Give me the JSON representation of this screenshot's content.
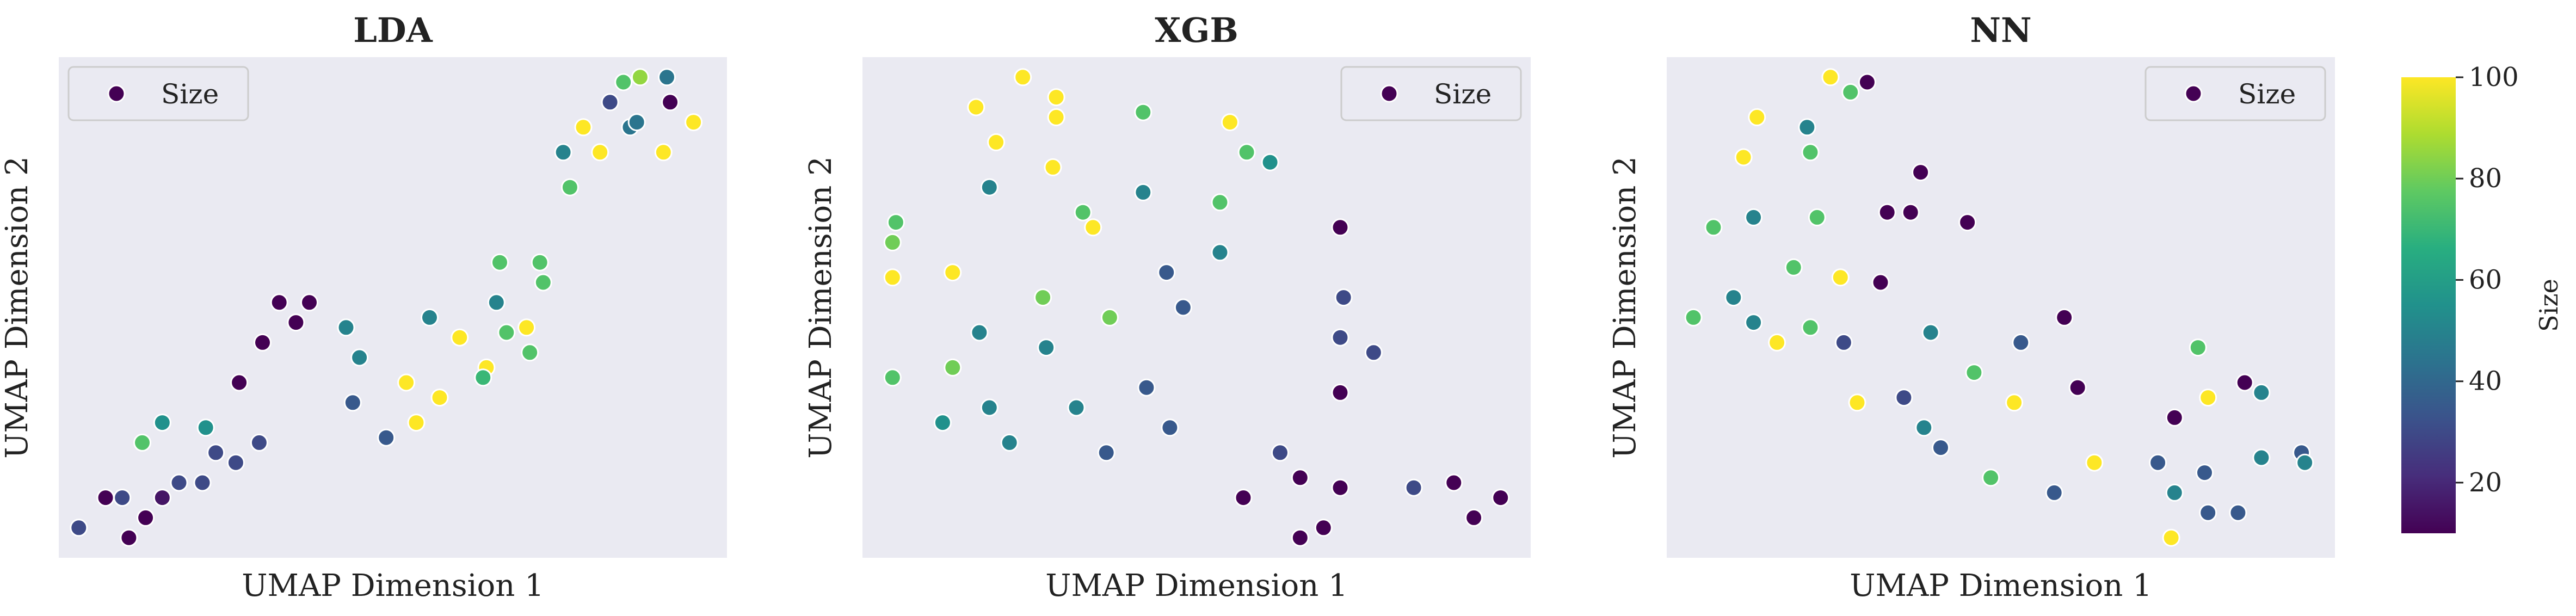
{
  "colorbar": {
    "label": "Size",
    "min": 10,
    "max": 100,
    "ticks": [
      "20",
      "40",
      "60",
      "80",
      "100"
    ],
    "tick_values": [
      20,
      40,
      60,
      80,
      100
    ]
  },
  "chart_data": [
    {
      "type": "scatter",
      "title": "LDA",
      "xlabel": "UMAP Dimension 1",
      "ylabel": "UMAP Dimension 2",
      "legend": {
        "label": "Size",
        "position": "top-left"
      },
      "grid": false,
      "points": [
        {
          "x": 0.03,
          "y": 0.06,
          "size": 30
        },
        {
          "x": 0.07,
          "y": 0.12,
          "size": 10
        },
        {
          "x": 0.095,
          "y": 0.12,
          "size": 30
        },
        {
          "x": 0.105,
          "y": 0.04,
          "size": 10
        },
        {
          "x": 0.13,
          "y": 0.08,
          "size": 10
        },
        {
          "x": 0.155,
          "y": 0.12,
          "size": 15
        },
        {
          "x": 0.18,
          "y": 0.15,
          "size": 30
        },
        {
          "x": 0.215,
          "y": 0.15,
          "size": 30
        },
        {
          "x": 0.235,
          "y": 0.21,
          "size": 30
        },
        {
          "x": 0.265,
          "y": 0.19,
          "size": 30
        },
        {
          "x": 0.3,
          "y": 0.23,
          "size": 30
        },
        {
          "x": 0.125,
          "y": 0.23,
          "size": 75
        },
        {
          "x": 0.155,
          "y": 0.27,
          "size": 55
        },
        {
          "x": 0.22,
          "y": 0.26,
          "size": 55
        },
        {
          "x": 0.27,
          "y": 0.35,
          "size": 10
        },
        {
          "x": 0.305,
          "y": 0.43,
          "size": 10
        },
        {
          "x": 0.33,
          "y": 0.51,
          "size": 10
        },
        {
          "x": 0.355,
          "y": 0.47,
          "size": 10
        },
        {
          "x": 0.375,
          "y": 0.51,
          "size": 10
        },
        {
          "x": 0.43,
          "y": 0.46,
          "size": 50
        },
        {
          "x": 0.45,
          "y": 0.4,
          "size": 50
        },
        {
          "x": 0.44,
          "y": 0.31,
          "size": 35
        },
        {
          "x": 0.49,
          "y": 0.24,
          "size": 35
        },
        {
          "x": 0.52,
          "y": 0.35,
          "size": 100
        },
        {
          "x": 0.535,
          "y": 0.27,
          "size": 100
        },
        {
          "x": 0.57,
          "y": 0.32,
          "size": 100
        },
        {
          "x": 0.6,
          "y": 0.44,
          "size": 100
        },
        {
          "x": 0.555,
          "y": 0.48,
          "size": 50
        },
        {
          "x": 0.64,
          "y": 0.38,
          "size": 100
        },
        {
          "x": 0.635,
          "y": 0.36,
          "size": 70
        },
        {
          "x": 0.67,
          "y": 0.45,
          "size": 75
        },
        {
          "x": 0.655,
          "y": 0.51,
          "size": 50
        },
        {
          "x": 0.66,
          "y": 0.59,
          "size": 75
        },
        {
          "x": 0.7,
          "y": 0.46,
          "size": 100
        },
        {
          "x": 0.705,
          "y": 0.41,
          "size": 75
        },
        {
          "x": 0.72,
          "y": 0.59,
          "size": 75
        },
        {
          "x": 0.725,
          "y": 0.55,
          "size": 75
        },
        {
          "x": 0.755,
          "y": 0.81,
          "size": 50
        },
        {
          "x": 0.765,
          "y": 0.74,
          "size": 75
        },
        {
          "x": 0.785,
          "y": 0.86,
          "size": 100
        },
        {
          "x": 0.81,
          "y": 0.81,
          "size": 100
        },
        {
          "x": 0.825,
          "y": 0.91,
          "size": 30
        },
        {
          "x": 0.845,
          "y": 0.95,
          "size": 75
        },
        {
          "x": 0.855,
          "y": 0.86,
          "size": 45
        },
        {
          "x": 0.865,
          "y": 0.87,
          "size": 45
        },
        {
          "x": 0.87,
          "y": 0.96,
          "size": 85
        },
        {
          "x": 0.91,
          "y": 0.96,
          "size": 45
        },
        {
          "x": 0.915,
          "y": 0.91,
          "size": 10
        },
        {
          "x": 0.905,
          "y": 0.81,
          "size": 100
        },
        {
          "x": 0.95,
          "y": 0.87,
          "size": 100
        }
      ]
    },
    {
      "type": "scatter",
      "title": "XGB",
      "xlabel": "UMAP Dimension 1",
      "ylabel": "UMAP Dimension 2",
      "legend": {
        "label": "Size",
        "position": "top-right"
      },
      "grid": false,
      "points": [
        {
          "x": 0.05,
          "y": 0.67,
          "size": 75
        },
        {
          "x": 0.045,
          "y": 0.63,
          "size": 80
        },
        {
          "x": 0.045,
          "y": 0.56,
          "size": 100
        },
        {
          "x": 0.045,
          "y": 0.36,
          "size": 75
        },
        {
          "x": 0.135,
          "y": 0.57,
          "size": 100
        },
        {
          "x": 0.135,
          "y": 0.38,
          "size": 80
        },
        {
          "x": 0.12,
          "y": 0.27,
          "size": 55
        },
        {
          "x": 0.175,
          "y": 0.45,
          "size": 50
        },
        {
          "x": 0.19,
          "y": 0.3,
          "size": 50
        },
        {
          "x": 0.22,
          "y": 0.23,
          "size": 50
        },
        {
          "x": 0.17,
          "y": 0.9,
          "size": 100
        },
        {
          "x": 0.2,
          "y": 0.83,
          "size": 100
        },
        {
          "x": 0.24,
          "y": 0.96,
          "size": 100
        },
        {
          "x": 0.29,
          "y": 0.92,
          "size": 100
        },
        {
          "x": 0.29,
          "y": 0.88,
          "size": 100
        },
        {
          "x": 0.285,
          "y": 0.78,
          "size": 100
        },
        {
          "x": 0.19,
          "y": 0.74,
          "size": 50
        },
        {
          "x": 0.33,
          "y": 0.69,
          "size": 75
        },
        {
          "x": 0.345,
          "y": 0.66,
          "size": 100
        },
        {
          "x": 0.27,
          "y": 0.52,
          "size": 80
        },
        {
          "x": 0.275,
          "y": 0.42,
          "size": 50
        },
        {
          "x": 0.32,
          "y": 0.3,
          "size": 50
        },
        {
          "x": 0.37,
          "y": 0.48,
          "size": 80
        },
        {
          "x": 0.365,
          "y": 0.21,
          "size": 35
        },
        {
          "x": 0.42,
          "y": 0.89,
          "size": 75
        },
        {
          "x": 0.42,
          "y": 0.73,
          "size": 50
        },
        {
          "x": 0.425,
          "y": 0.34,
          "size": 35
        },
        {
          "x": 0.455,
          "y": 0.57,
          "size": 35
        },
        {
          "x": 0.46,
          "y": 0.26,
          "size": 35
        },
        {
          "x": 0.48,
          "y": 0.5,
          "size": 35
        },
        {
          "x": 0.55,
          "y": 0.87,
          "size": 100
        },
        {
          "x": 0.575,
          "y": 0.81,
          "size": 75
        },
        {
          "x": 0.61,
          "y": 0.79,
          "size": 55
        },
        {
          "x": 0.535,
          "y": 0.71,
          "size": 75
        },
        {
          "x": 0.535,
          "y": 0.61,
          "size": 50
        },
        {
          "x": 0.57,
          "y": 0.12,
          "size": 10
        },
        {
          "x": 0.625,
          "y": 0.21,
          "size": 30
        },
        {
          "x": 0.655,
          "y": 0.16,
          "size": 10
        },
        {
          "x": 0.655,
          "y": 0.04,
          "size": 10
        },
        {
          "x": 0.69,
          "y": 0.06,
          "size": 10
        },
        {
          "x": 0.715,
          "y": 0.66,
          "size": 10
        },
        {
          "x": 0.72,
          "y": 0.52,
          "size": 30
        },
        {
          "x": 0.715,
          "y": 0.44,
          "size": 30
        },
        {
          "x": 0.715,
          "y": 0.33,
          "size": 10
        },
        {
          "x": 0.765,
          "y": 0.41,
          "size": 30
        },
        {
          "x": 0.715,
          "y": 0.14,
          "size": 10
        },
        {
          "x": 0.825,
          "y": 0.14,
          "size": 30
        },
        {
          "x": 0.885,
          "y": 0.15,
          "size": 10
        },
        {
          "x": 0.915,
          "y": 0.08,
          "size": 10
        },
        {
          "x": 0.955,
          "y": 0.12,
          "size": 10
        }
      ]
    },
    {
      "type": "scatter",
      "title": "NN",
      "xlabel": "UMAP Dimension 1",
      "ylabel": "UMAP Dimension 2",
      "legend": {
        "label": "Size",
        "position": "top-right"
      },
      "grid": false,
      "points": [
        {
          "x": 0.04,
          "y": 0.48,
          "size": 75
        },
        {
          "x": 0.07,
          "y": 0.66,
          "size": 75
        },
        {
          "x": 0.1,
          "y": 0.52,
          "size": 50
        },
        {
          "x": 0.13,
          "y": 0.68,
          "size": 50
        },
        {
          "x": 0.13,
          "y": 0.47,
          "size": 50
        },
        {
          "x": 0.115,
          "y": 0.8,
          "size": 100
        },
        {
          "x": 0.135,
          "y": 0.88,
          "size": 100
        },
        {
          "x": 0.165,
          "y": 0.43,
          "size": 100
        },
        {
          "x": 0.19,
          "y": 0.58,
          "size": 75
        },
        {
          "x": 0.21,
          "y": 0.86,
          "size": 50
        },
        {
          "x": 0.215,
          "y": 0.81,
          "size": 75
        },
        {
          "x": 0.225,
          "y": 0.68,
          "size": 75
        },
        {
          "x": 0.215,
          "y": 0.46,
          "size": 75
        },
        {
          "x": 0.245,
          "y": 0.96,
          "size": 100
        },
        {
          "x": 0.26,
          "y": 0.56,
          "size": 100
        },
        {
          "x": 0.265,
          "y": 0.43,
          "size": 30
        },
        {
          "x": 0.275,
          "y": 0.93,
          "size": 75
        },
        {
          "x": 0.285,
          "y": 0.31,
          "size": 100
        },
        {
          "x": 0.3,
          "y": 0.95,
          "size": 10
        },
        {
          "x": 0.32,
          "y": 0.55,
          "size": 10
        },
        {
          "x": 0.33,
          "y": 0.69,
          "size": 10
        },
        {
          "x": 0.355,
          "y": 0.32,
          "size": 30
        },
        {
          "x": 0.365,
          "y": 0.69,
          "size": 10
        },
        {
          "x": 0.38,
          "y": 0.77,
          "size": 10
        },
        {
          "x": 0.385,
          "y": 0.26,
          "size": 50
        },
        {
          "x": 0.395,
          "y": 0.45,
          "size": 50
        },
        {
          "x": 0.41,
          "y": 0.22,
          "size": 35
        },
        {
          "x": 0.45,
          "y": 0.67,
          "size": 10
        },
        {
          "x": 0.46,
          "y": 0.37,
          "size": 75
        },
        {
          "x": 0.485,
          "y": 0.16,
          "size": 75
        },
        {
          "x": 0.52,
          "y": 0.31,
          "size": 100
        },
        {
          "x": 0.53,
          "y": 0.43,
          "size": 35
        },
        {
          "x": 0.58,
          "y": 0.13,
          "size": 35
        },
        {
          "x": 0.595,
          "y": 0.48,
          "size": 10
        },
        {
          "x": 0.615,
          "y": 0.34,
          "size": 10
        },
        {
          "x": 0.64,
          "y": 0.19,
          "size": 100
        },
        {
          "x": 0.735,
          "y": 0.19,
          "size": 35
        },
        {
          "x": 0.76,
          "y": 0.28,
          "size": 10
        },
        {
          "x": 0.76,
          "y": 0.13,
          "size": 50
        },
        {
          "x": 0.755,
          "y": 0.04,
          "size": 100
        },
        {
          "x": 0.795,
          "y": 0.42,
          "size": 75
        },
        {
          "x": 0.81,
          "y": 0.32,
          "size": 100
        },
        {
          "x": 0.805,
          "y": 0.17,
          "size": 35
        },
        {
          "x": 0.81,
          "y": 0.09,
          "size": 35
        },
        {
          "x": 0.855,
          "y": 0.09,
          "size": 35
        },
        {
          "x": 0.865,
          "y": 0.35,
          "size": 10
        },
        {
          "x": 0.89,
          "y": 0.33,
          "size": 50
        },
        {
          "x": 0.89,
          "y": 0.2,
          "size": 50
        },
        {
          "x": 0.95,
          "y": 0.21,
          "size": 35
        },
        {
          "x": 0.955,
          "y": 0.19,
          "size": 50
        }
      ]
    }
  ]
}
